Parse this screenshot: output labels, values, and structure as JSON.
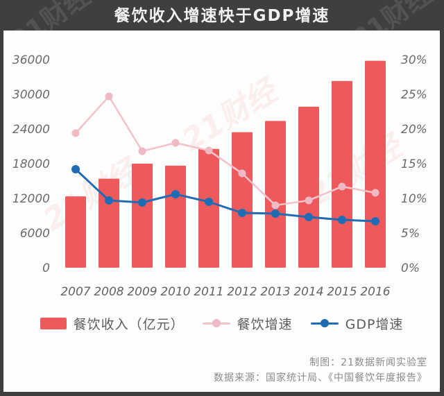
{
  "header": {
    "title": "餐饮收入增速快于GDP增速"
  },
  "watermark": {
    "text": "21财经"
  },
  "chart_data": {
    "type": "bar",
    "title": "餐饮收入增速快于GDP增速",
    "categories": [
      "2007",
      "2008",
      "2009",
      "2010",
      "2011",
      "2012",
      "2013",
      "2014",
      "2015",
      "2016"
    ],
    "bar_series": {
      "name": "餐饮收入（亿元）",
      "axis": "left",
      "values": [
        12352,
        15404,
        17998,
        17648,
        20543,
        23448,
        25392,
        27860,
        32310,
        35799
      ]
    },
    "line_series": [
      {
        "name": "餐饮增速",
        "axis": "right",
        "color_key": "pink",
        "values": [
          19.4,
          24.7,
          16.8,
          18.0,
          16.9,
          13.6,
          9.0,
          9.7,
          11.7,
          10.8
        ]
      },
      {
        "name": "GDP增速",
        "axis": "right",
        "color_key": "blue",
        "values": [
          14.2,
          9.7,
          9.4,
          10.6,
          9.5,
          7.9,
          7.8,
          7.3,
          6.9,
          6.7
        ]
      }
    ],
    "left_axis": {
      "min": 0,
      "max": 36000,
      "step": 6000,
      "tick_labels": [
        "0",
        "6000",
        "12000",
        "18000",
        "24000",
        "30000",
        "36000"
      ]
    },
    "right_axis": {
      "min": 0,
      "max": 30,
      "step": 5,
      "tick_labels": [
        "0%",
        "5%",
        "10%",
        "15%",
        "20%",
        "25%",
        "30%"
      ]
    },
    "grid": false,
    "legend_position": "bottom"
  },
  "legend": {
    "items": [
      {
        "label": "餐饮收入（亿元）",
        "type": "bar",
        "color_key": "bar"
      },
      {
        "label": "餐饮增速",
        "type": "line",
        "color_key": "pink"
      },
      {
        "label": "GDP增速",
        "type": "line",
        "color_key": "blue"
      }
    ]
  },
  "footer": {
    "credit": "制图：21数据新闻实验室",
    "source": "数据来源：国家统计局、《中国餐饮年度报告》"
  },
  "colors": {
    "frame": "#3f3f3f",
    "panel": "#fdfdfd",
    "bar": "#ee5a5c",
    "pink": "#f2c3cb",
    "pink_marker": "#efbac5",
    "blue": "#1f6cb4",
    "tick": "#6a6a6a",
    "title": "#f2f2f2",
    "watermark_plot": "rgba(238,90,92,0.09)"
  }
}
